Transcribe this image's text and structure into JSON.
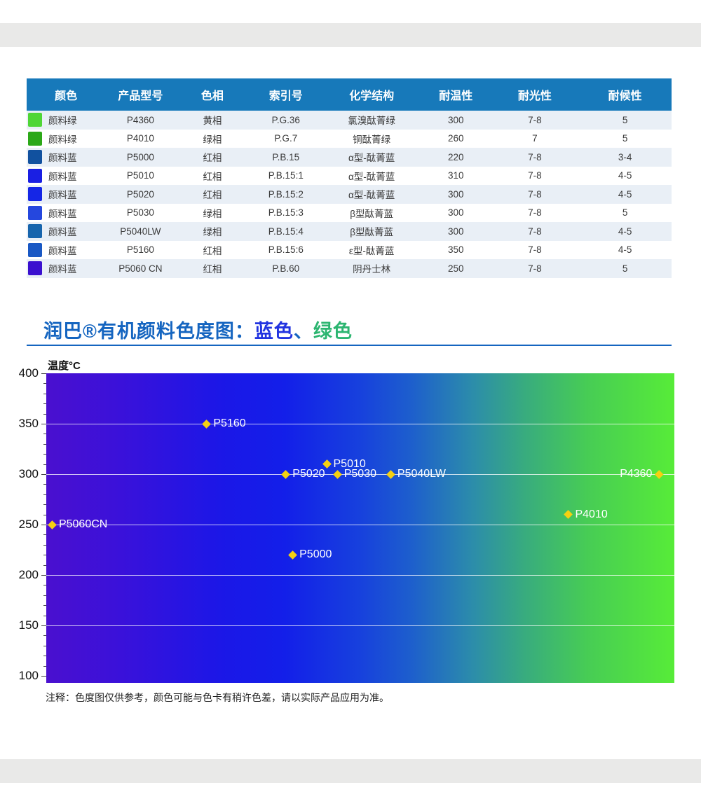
{
  "page": {
    "top_band_color": "#e9e9e8",
    "bottom_band_color": "#e9e9e8"
  },
  "table": {
    "header_bg": "#1779ba",
    "alt_row_bg": "#e9eff6",
    "header": [
      "颜色",
      "产品型号",
      "色相",
      "索引号",
      "化学结构",
      "耐温性",
      "耐光性",
      "耐候性"
    ],
    "rows": [
      {
        "swatch": "#4fd636",
        "color_name": "颜料绿",
        "model": "P4360",
        "hue": "黄相",
        "index": "P.G.36",
        "structure": "氯溴酞菁绿",
        "temp": "300",
        "light": "7-8",
        "weather": "5"
      },
      {
        "swatch": "#2ca818",
        "color_name": "颜料绿",
        "model": "P4010",
        "hue": "绿相",
        "index": "P.G.7",
        "structure": "铜酞菁绿",
        "temp": "260",
        "light": "7",
        "weather": "5"
      },
      {
        "swatch": "#11519f",
        "color_name": "颜料蓝",
        "model": "P5000",
        "hue": "红相",
        "index": "P.B.15",
        "structure": "α型-酞菁蓝",
        "temp": "220",
        "light": "7-8",
        "weather": "3-4"
      },
      {
        "swatch": "#1a1fe3",
        "color_name": "颜料蓝",
        "model": "P5010",
        "hue": "红相",
        "index": "P.B.15:1",
        "structure": "α型-酞菁蓝",
        "temp": "310",
        "light": "7-8",
        "weather": "4-5"
      },
      {
        "swatch": "#1526e6",
        "color_name": "颜料蓝",
        "model": "P5020",
        "hue": "红相",
        "index": "P.B.15:2",
        "structure": "α型-酞菁蓝",
        "temp": "300",
        "light": "7-8",
        "weather": "4-5"
      },
      {
        "swatch": "#2547de",
        "color_name": "颜料蓝",
        "model": "P5030",
        "hue": "绿相",
        "index": "P.B.15:3",
        "structure": "β型酞菁蓝",
        "temp": "300",
        "light": "7-8",
        "weather": "5"
      },
      {
        "swatch": "#1765ad",
        "color_name": "颜料蓝",
        "model": "P5040LW",
        "hue": "绿相",
        "index": "P.B.15:4",
        "structure": "β型酞菁蓝",
        "temp": "300",
        "light": "7-8",
        "weather": "4-5"
      },
      {
        "swatch": "#1958c4",
        "color_name": "颜料蓝",
        "model": "P5160",
        "hue": "红相",
        "index": "P.B.15:6",
        "structure": "ε型-酞菁蓝",
        "temp": "350",
        "light": "7-8",
        "weather": "4-5"
      },
      {
        "swatch": "#3a10cf",
        "color_name": "颜料蓝",
        "model": "P5060 CN",
        "hue": "红相",
        "index": "P.B.60",
        "structure": "阴丹士林",
        "temp": "250",
        "light": "7-8",
        "weather": "5"
      }
    ]
  },
  "section": {
    "divider_color": "#1565c0",
    "title_parts": [
      {
        "text": "润巴®有机颜料色度图：",
        "color": "#1565c0"
      },
      {
        "text": "蓝色",
        "color": "#2133e0"
      },
      {
        "text": "、",
        "color": "#1565c0"
      },
      {
        "text": "绿色",
        "color": "#2cb570"
      }
    ]
  },
  "chart_data": {
    "type": "scatter",
    "title": "润巴®有机颜料色度图：蓝色、绿色",
    "ylabel": "温度°C",
    "xlabel": "",
    "ylim": [
      100,
      400
    ],
    "yticks": [
      400,
      350,
      300,
      250,
      200,
      150,
      100
    ],
    "minor_tick_step": 10,
    "grid": true,
    "gridline_values": [
      350,
      300,
      250,
      200,
      150
    ],
    "marker": "diamond",
    "marker_color": "#f5d011",
    "label_color": "#ffffff",
    "background_gradient": [
      "#4a10cf",
      "#3a11da",
      "#1b17e7",
      "#131fe9",
      "#1741dd",
      "#1d5ecd",
      "#2c8daa",
      "#38ab7f",
      "#47cc55",
      "#57ec38"
    ],
    "background_gradient_stops": [
      0,
      12,
      28,
      38,
      50,
      58,
      68,
      76,
      86,
      100
    ],
    "points": [
      {
        "label": "P5160",
        "temp": 350,
        "x_pct": 25.6,
        "label_side": "right"
      },
      {
        "label": "P5010",
        "temp": 310,
        "x_pct": 44.7,
        "label_side": "right"
      },
      {
        "label": "P5020",
        "temp": 300,
        "x_pct": 38.2,
        "label_side": "right"
      },
      {
        "label": "P5030",
        "temp": 300,
        "x_pct": 46.4,
        "label_side": "right"
      },
      {
        "label": "P5040LW",
        "temp": 300,
        "x_pct": 54.9,
        "label_side": "right"
      },
      {
        "label": "P4360",
        "temp": 300,
        "x_pct": 98.6,
        "label_side": "left"
      },
      {
        "label": "P4010",
        "temp": 260,
        "x_pct": 83.2,
        "label_side": "right"
      },
      {
        "label": "P5060CN",
        "temp": 250,
        "x_pct": 1.0,
        "label_side": "right"
      },
      {
        "label": "P5000",
        "temp": 220,
        "x_pct": 39.3,
        "label_side": "right"
      }
    ],
    "note": "注释：色度图仅供参考，颜色可能与色卡有稍许色差，请以实际产品应用为准。"
  }
}
